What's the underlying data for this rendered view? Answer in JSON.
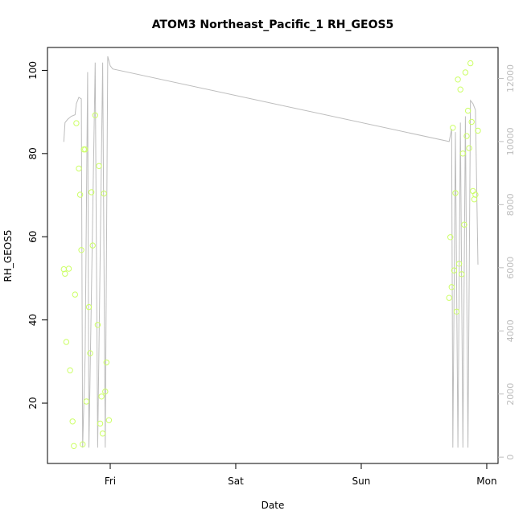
{
  "chart_data": {
    "type": "scatter",
    "title": "ATOM3 Northeast_Pacific_1 RH_GEOS5",
    "xlabel": "Date",
    "ylabel": "RH_GEOS5",
    "x_tick_labels": [
      "Fri",
      "Sat",
      "Sun",
      "Mon"
    ],
    "x_ticks_days": [
      0,
      1,
      2,
      3
    ],
    "xlim_days": [
      -0.5,
      3.09
    ],
    "ylim": [
      5.5,
      105.5
    ],
    "y_ticks": [
      20,
      40,
      60,
      80,
      100
    ],
    "y2_ticks": [
      0,
      2000,
      4000,
      6000,
      8000,
      10000,
      12000
    ],
    "y2lim": [
      -200,
      12980
    ],
    "colors": {
      "points": "#ccff66",
      "line": "#bdbdbd",
      "axis": "#000000",
      "axis2": "#bdbdbd"
    },
    "series": [
      {
        "kind": "points",
        "axis": "left",
        "points": [
          [
            -0.37,
            52.2
          ],
          [
            -0.36,
            51.1
          ],
          [
            -0.35,
            34.7
          ],
          [
            -0.33,
            52.3
          ],
          [
            -0.32,
            27.9
          ],
          [
            -0.3,
            15.6
          ],
          [
            -0.29,
            9.7
          ],
          [
            -0.28,
            46.1
          ],
          [
            -0.27,
            87.3
          ],
          [
            -0.25,
            76.4
          ],
          [
            -0.24,
            70.1
          ],
          [
            -0.23,
            56.8
          ],
          [
            -0.22,
            10.1
          ],
          [
            -0.21,
            81.0
          ],
          [
            -0.2,
            81.0
          ],
          [
            -0.19,
            20.4
          ],
          [
            -0.17,
            43.1
          ],
          [
            -0.16,
            32.0
          ],
          [
            -0.15,
            70.7
          ],
          [
            -0.14,
            57.9
          ],
          [
            -0.12,
            89.2
          ],
          [
            -0.1,
            38.8
          ],
          [
            -0.09,
            77.0
          ],
          [
            -0.08,
            15.1
          ],
          [
            -0.07,
            21.6
          ],
          [
            -0.06,
            12.7
          ],
          [
            -0.05,
            70.4
          ],
          [
            -0.04,
            22.8
          ],
          [
            -0.03,
            29.8
          ],
          [
            -0.01,
            15.9
          ],
          [
            2.7,
            45.3
          ],
          [
            2.71,
            59.9
          ],
          [
            2.72,
            47.9
          ],
          [
            2.73,
            86.2
          ],
          [
            2.74,
            51.9
          ],
          [
            2.75,
            70.5
          ],
          [
            2.76,
            42.0
          ],
          [
            2.77,
            97.8
          ],
          [
            2.78,
            53.5
          ],
          [
            2.79,
            95.4
          ],
          [
            2.8,
            51.0
          ],
          [
            2.81,
            80.0
          ],
          [
            2.82,
            62.9
          ],
          [
            2.83,
            99.5
          ],
          [
            2.84,
            84.2
          ],
          [
            2.85,
            90.3
          ],
          [
            2.86,
            81.3
          ],
          [
            2.87,
            101.7
          ],
          [
            2.88,
            87.6
          ],
          [
            2.89,
            71.0
          ],
          [
            2.9,
            69.0
          ],
          [
            2.91,
            70.1
          ],
          [
            2.93,
            85.5
          ]
        ]
      },
      {
        "kind": "line",
        "axis": "right",
        "points": [
          [
            -0.37,
            9990
          ],
          [
            -0.36,
            10600
          ],
          [
            -0.34,
            10700
          ],
          [
            -0.31,
            10800
          ],
          [
            -0.28,
            10850
          ],
          [
            -0.27,
            11200
          ],
          [
            -0.25,
            11400
          ],
          [
            -0.23,
            11350
          ],
          [
            -0.22,
            300
          ],
          [
            -0.2,
            3200
          ],
          [
            -0.18,
            12200
          ],
          [
            -0.17,
            300
          ],
          [
            -0.12,
            12500
          ],
          [
            -0.1,
            300
          ],
          [
            -0.06,
            12500
          ],
          [
            -0.04,
            300
          ],
          [
            -0.02,
            12700
          ],
          [
            0.0,
            12400
          ],
          [
            0.02,
            12300
          ],
          [
            2.7,
            10000
          ],
          [
            2.72,
            10400
          ],
          [
            2.73,
            300
          ],
          [
            2.75,
            10300
          ],
          [
            2.77,
            300
          ],
          [
            2.79,
            10600
          ],
          [
            2.81,
            300
          ],
          [
            2.83,
            10800
          ],
          [
            2.85,
            300
          ],
          [
            2.87,
            11300
          ],
          [
            2.89,
            11200
          ],
          [
            2.91,
            11000
          ],
          [
            2.93,
            6100
          ]
        ]
      }
    ]
  }
}
